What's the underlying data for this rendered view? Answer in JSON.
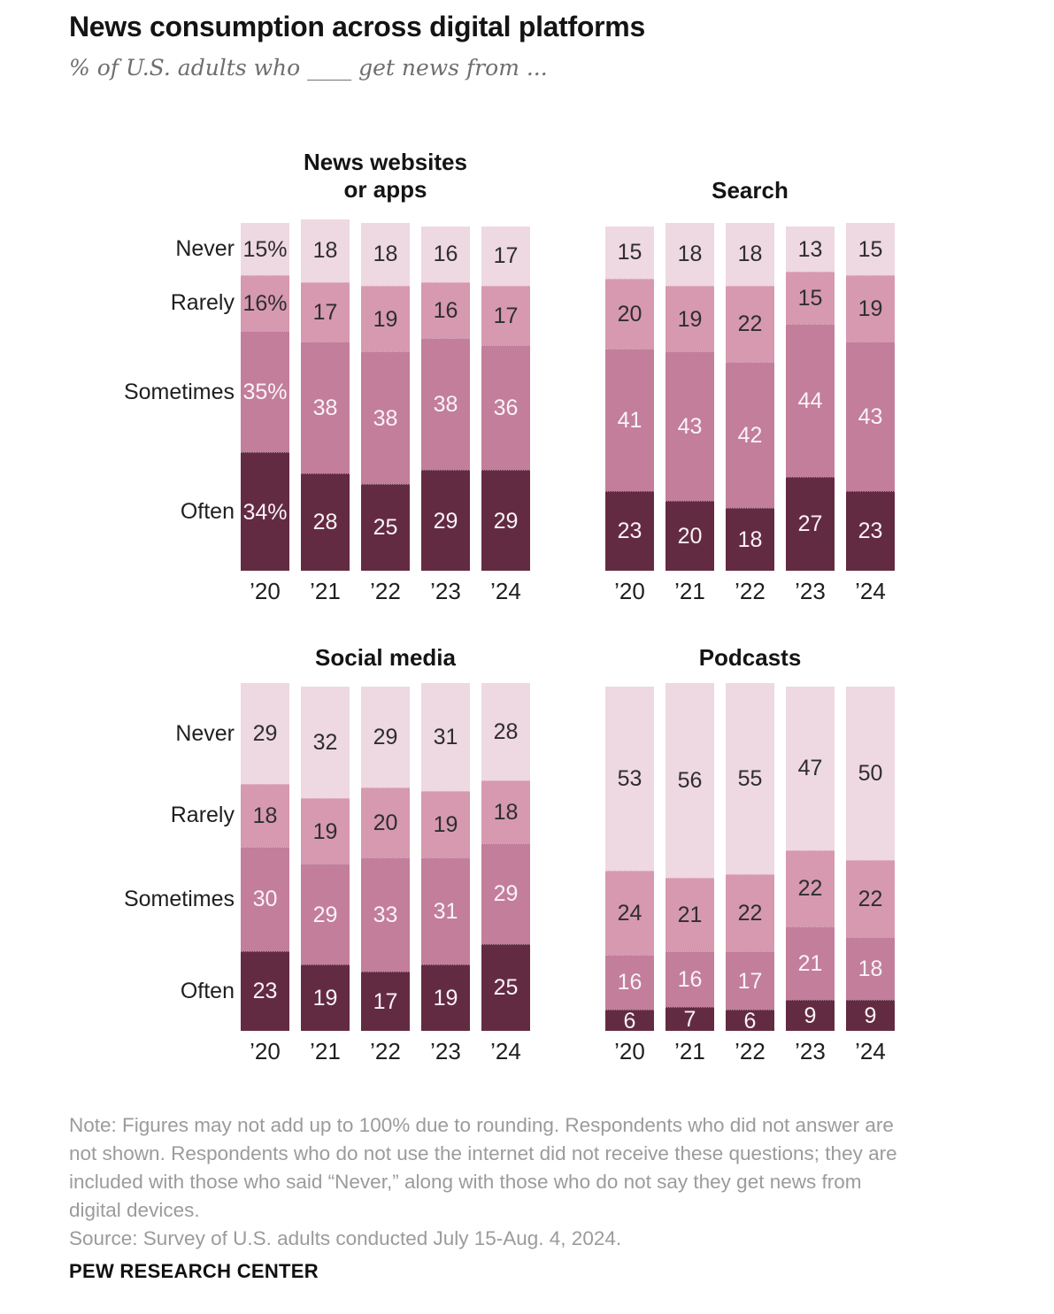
{
  "header": {
    "title": "News consumption across digital platforms",
    "subtitle": "% of U.S. adults who ____ get news from ..."
  },
  "row_labels": [
    "Never",
    "Rarely",
    "Sometimes",
    "Often"
  ],
  "years": [
    "’20",
    "’21",
    "’22",
    "’23",
    "’24"
  ],
  "colors": {
    "never": "#eed8e2",
    "rarely": "#d699af",
    "sometimes": "#c27e9b",
    "often": "#632b41",
    "label_dark": "#2e2e2e",
    "label_light": "#faf3f6"
  },
  "chart_data": [
    {
      "type": "bar",
      "stacked": true,
      "title_lines": [
        "News websites",
        "or apps"
      ],
      "show_row_labels": true,
      "percent_suffix_col": 0,
      "categories": [
        "’20",
        "’21",
        "’22",
        "’23",
        "’24"
      ],
      "series": [
        {
          "name": "Never",
          "color_key": "never",
          "label_tone": "dark",
          "values": [
            15,
            18,
            18,
            16,
            17
          ]
        },
        {
          "name": "Rarely",
          "color_key": "rarely",
          "label_tone": "dark",
          "values": [
            16,
            17,
            19,
            16,
            17
          ]
        },
        {
          "name": "Sometimes",
          "color_key": "sometimes",
          "label_tone": "light",
          "values": [
            35,
            38,
            38,
            38,
            36
          ]
        },
        {
          "name": "Often",
          "color_key": "often",
          "label_tone": "light",
          "values": [
            34,
            28,
            25,
            29,
            29
          ]
        }
      ]
    },
    {
      "type": "bar",
      "stacked": true,
      "title_lines": [
        "Search"
      ],
      "show_row_labels": false,
      "percent_suffix_col": -1,
      "categories": [
        "’20",
        "’21",
        "’22",
        "’23",
        "’24"
      ],
      "series": [
        {
          "name": "Never",
          "color_key": "never",
          "label_tone": "dark",
          "values": [
            15,
            18,
            18,
            13,
            15
          ]
        },
        {
          "name": "Rarely",
          "color_key": "rarely",
          "label_tone": "dark",
          "values": [
            20,
            19,
            22,
            15,
            19
          ]
        },
        {
          "name": "Sometimes",
          "color_key": "sometimes",
          "label_tone": "light",
          "values": [
            41,
            43,
            42,
            44,
            43
          ]
        },
        {
          "name": "Often",
          "color_key": "often",
          "label_tone": "light",
          "values": [
            23,
            20,
            18,
            27,
            23
          ]
        }
      ]
    },
    {
      "type": "bar",
      "stacked": true,
      "title_lines": [
        "Social media"
      ],
      "show_row_labels": true,
      "percent_suffix_col": -1,
      "categories": [
        "’20",
        "’21",
        "’22",
        "’23",
        "’24"
      ],
      "series": [
        {
          "name": "Never",
          "color_key": "never",
          "label_tone": "dark",
          "values": [
            29,
            32,
            29,
            31,
            28
          ]
        },
        {
          "name": "Rarely",
          "color_key": "rarely",
          "label_tone": "dark",
          "values": [
            18,
            19,
            20,
            19,
            18
          ]
        },
        {
          "name": "Sometimes",
          "color_key": "sometimes",
          "label_tone": "light",
          "values": [
            30,
            29,
            33,
            31,
            29
          ]
        },
        {
          "name": "Often",
          "color_key": "often",
          "label_tone": "light",
          "values": [
            23,
            19,
            17,
            19,
            25
          ]
        }
      ]
    },
    {
      "type": "bar",
      "stacked": true,
      "title_lines": [
        "Podcasts"
      ],
      "show_row_labels": false,
      "percent_suffix_col": -1,
      "categories": [
        "’20",
        "’21",
        "’22",
        "’23",
        "’24"
      ],
      "series": [
        {
          "name": "Never",
          "color_key": "never",
          "label_tone": "dark",
          "values": [
            53,
            56,
            55,
            47,
            50
          ]
        },
        {
          "name": "Rarely",
          "color_key": "rarely",
          "label_tone": "dark",
          "values": [
            24,
            21,
            22,
            22,
            22
          ]
        },
        {
          "name": "Sometimes",
          "color_key": "sometimes",
          "label_tone": "light",
          "values": [
            16,
            16,
            17,
            21,
            18
          ]
        },
        {
          "name": "Often",
          "color_key": "often",
          "label_tone": "light",
          "values": [
            6,
            7,
            6,
            9,
            9
          ]
        }
      ]
    }
  ],
  "note": "Note: Figures may not add up to 100% due to rounding. Respondents who did not answer are not shown. Respondents who do not use the internet did not receive these questions; they are included with those who said “Never,” along with those who do not say they get news from digital devices.",
  "source": "Source: Survey of U.S. adults conducted July 15-Aug. 4, 2024.",
  "footer": "PEW RESEARCH CENTER"
}
